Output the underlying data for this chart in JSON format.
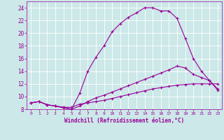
{
  "xlabel": "Windchill (Refroidissement éolien,°C)",
  "bg_color": "#cce8e8",
  "line_color": "#990099",
  "grid_color": "#ffffff",
  "xlim": [
    -0.5,
    23.5
  ],
  "ylim": [
    8,
    25
  ],
  "xticks": [
    0,
    1,
    2,
    3,
    4,
    5,
    6,
    7,
    8,
    9,
    10,
    11,
    12,
    13,
    14,
    15,
    16,
    17,
    18,
    19,
    20,
    21,
    22,
    23
  ],
  "yticks": [
    8,
    10,
    12,
    14,
    16,
    18,
    20,
    22,
    24
  ],
  "curve1_x": [
    0,
    1,
    2,
    3,
    4,
    5,
    6,
    7,
    8,
    9,
    10,
    11,
    12,
    13,
    14,
    15,
    16,
    17,
    18,
    19,
    20,
    21,
    22,
    23
  ],
  "curve1_y": [
    9.0,
    9.2,
    8.7,
    8.5,
    8.3,
    8.3,
    8.8,
    9.0,
    9.2,
    9.4,
    9.7,
    10.0,
    10.3,
    10.6,
    10.9,
    11.2,
    11.4,
    11.6,
    11.8,
    11.9,
    12.0,
    12.0,
    12.0,
    12.0
  ],
  "curve2_x": [
    0,
    1,
    2,
    3,
    4,
    5,
    6,
    7,
    8,
    9,
    10,
    11,
    12,
    13,
    14,
    15,
    16,
    17,
    18,
    19,
    20,
    21,
    22,
    23
  ],
  "curve2_y": [
    9.0,
    9.2,
    8.7,
    8.5,
    8.2,
    8.0,
    8.5,
    9.2,
    9.8,
    10.2,
    10.7,
    11.2,
    11.7,
    12.2,
    12.7,
    13.2,
    13.7,
    14.2,
    14.8,
    14.5,
    13.5,
    13.0,
    12.5,
    11.0
  ],
  "curve3_x": [
    0,
    1,
    2,
    3,
    4,
    5,
    6,
    7,
    8,
    9,
    10,
    11,
    12,
    13,
    14,
    15,
    16,
    17,
    18,
    19,
    20,
    21,
    22,
    23
  ],
  "curve3_y": [
    9.0,
    9.2,
    8.7,
    8.5,
    8.3,
    8.0,
    10.5,
    14.0,
    16.2,
    18.0,
    20.2,
    21.5,
    22.5,
    23.2,
    24.0,
    24.0,
    23.5,
    23.5,
    22.3,
    19.2,
    16.0,
    14.0,
    12.5,
    11.2
  ]
}
